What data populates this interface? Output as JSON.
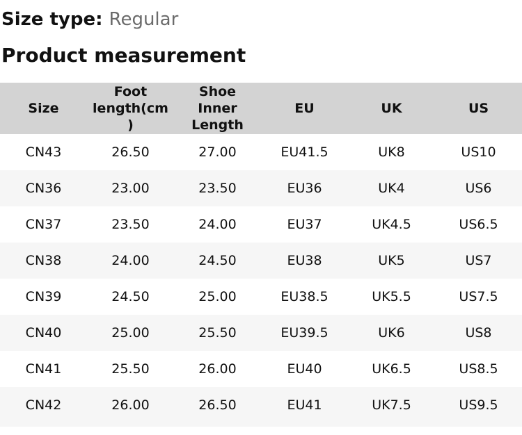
{
  "size_type": {
    "label": "Size type:",
    "value": "Regular"
  },
  "section_title": "Product measurement",
  "table": {
    "headers": [
      "Size",
      "Foot\nlength(cm\n)",
      "Shoe\nInner\nLength",
      "EU",
      "UK",
      "US"
    ],
    "rows": [
      [
        "CN43",
        "26.50",
        "27.00",
        "EU41.5",
        "UK8",
        "US10"
      ],
      [
        "CN36",
        "23.00",
        "23.50",
        "EU36",
        "UK4",
        "US6"
      ],
      [
        "CN37",
        "23.50",
        "24.00",
        "EU37",
        "UK4.5",
        "US6.5"
      ],
      [
        "CN38",
        "24.00",
        "24.50",
        "EU38",
        "UK5",
        "US7"
      ],
      [
        "CN39",
        "24.50",
        "25.00",
        "EU38.5",
        "UK5.5",
        "US7.5"
      ],
      [
        "CN40",
        "25.00",
        "25.50",
        "EU39.5",
        "UK6",
        "US8"
      ],
      [
        "CN41",
        "25.50",
        "26.00",
        "EU40",
        "UK6.5",
        "US8.5"
      ],
      [
        "CN42",
        "26.00",
        "26.50",
        "EU41",
        "UK7.5",
        "US9.5"
      ]
    ]
  },
  "colors": {
    "header_bg": "#d3d3d3",
    "row_alt_bg": "#f6f6f6",
    "text": "#111111",
    "muted_text": "#6b6b6b"
  }
}
